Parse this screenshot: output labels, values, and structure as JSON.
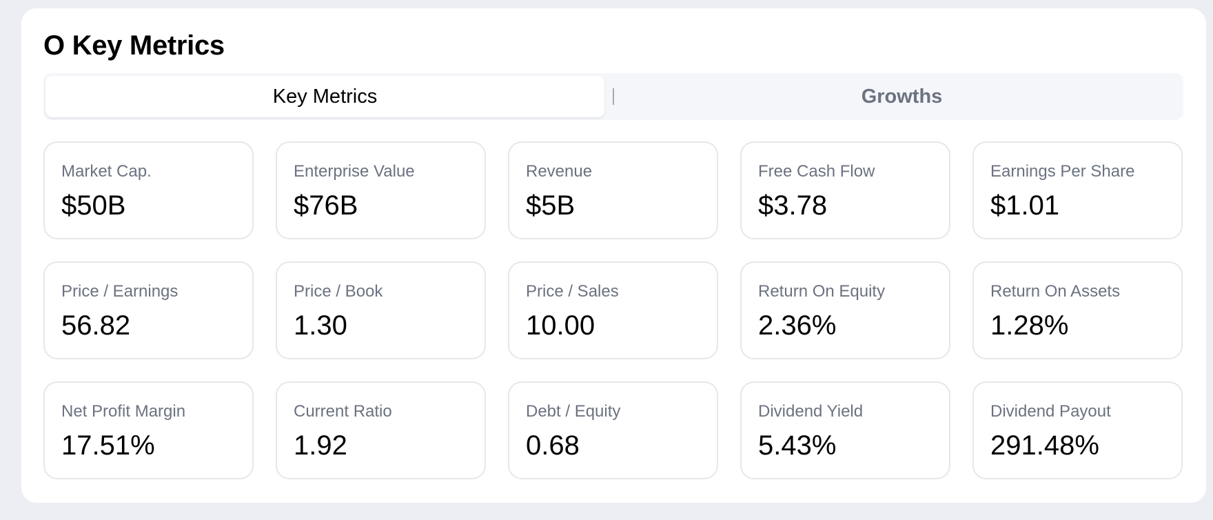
{
  "header": {
    "title": "O Key Metrics"
  },
  "tabs": [
    {
      "label": "Key Metrics",
      "active": true
    },
    {
      "label": "Growths",
      "active": false
    }
  ],
  "metrics": [
    {
      "label": "Market Cap.",
      "value": "$50B"
    },
    {
      "label": "Enterprise Value",
      "value": "$76B"
    },
    {
      "label": "Revenue",
      "value": "$5B"
    },
    {
      "label": "Free Cash Flow",
      "value": "$3.78"
    },
    {
      "label": "Earnings Per Share",
      "value": "$1.01"
    },
    {
      "label": "Price / Earnings",
      "value": "56.82"
    },
    {
      "label": "Price / Book",
      "value": "1.30"
    },
    {
      "label": "Price / Sales",
      "value": "10.00"
    },
    {
      "label": "Return On Equity",
      "value": "2.36%"
    },
    {
      "label": "Return On Assets",
      "value": "1.28%"
    },
    {
      "label": "Net Profit Margin",
      "value": "17.51%"
    },
    {
      "label": "Current Ratio",
      "value": "1.92"
    },
    {
      "label": "Debt / Equity",
      "value": "0.68"
    },
    {
      "label": "Dividend Yield",
      "value": "5.43%"
    },
    {
      "label": "Dividend Payout",
      "value": "291.48%"
    }
  ],
  "colors": {
    "page_background": "#eceef3",
    "panel_background": "#ffffff",
    "label_text": "#6b7280",
    "value_text": "#000000",
    "card_border": "#e5e7eb"
  }
}
